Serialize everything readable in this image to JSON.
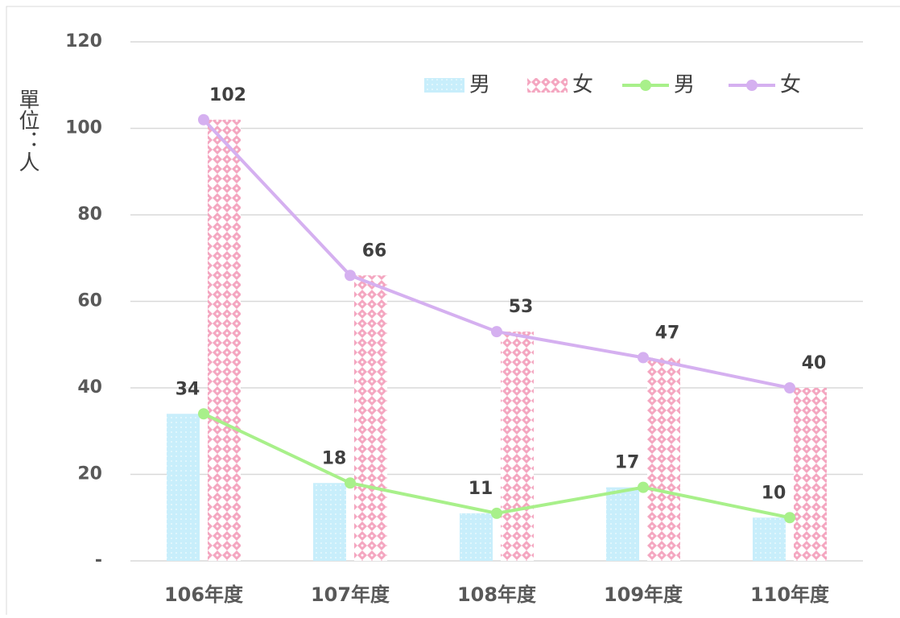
{
  "chart_data": {
    "type": "bar",
    "y_label": "單位：人",
    "categories": [
      "106年度",
      "107年度",
      "108年度",
      "109年度",
      "110年度"
    ],
    "series": [
      {
        "name": "男",
        "type": "bar",
        "color": "#bfe9f8",
        "values": [
          34,
          18,
          11,
          17,
          10
        ]
      },
      {
        "name": "女",
        "type": "bar",
        "color": "#f4a6c0",
        "values": [
          102,
          66,
          53,
          47,
          40
        ]
      },
      {
        "name": "男",
        "type": "line",
        "color": "#a8f08a",
        "values": [
          34,
          18,
          11,
          17,
          10
        ]
      },
      {
        "name": "女",
        "type": "line",
        "color": "#d5b0f0",
        "values": [
          102,
          66,
          53,
          47,
          40
        ]
      }
    ],
    "ylim": [
      0,
      120
    ],
    "yticks": [
      {
        "value": 0,
        "label": "-"
      },
      20,
      40,
      60,
      80,
      100,
      120
    ],
    "grid": true
  }
}
